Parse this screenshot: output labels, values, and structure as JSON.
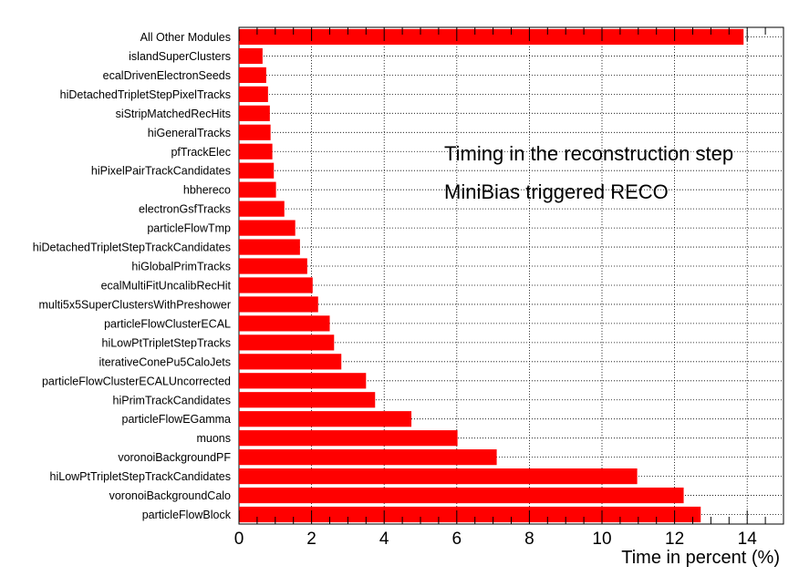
{
  "chart_data": {
    "type": "bar",
    "orientation": "horizontal",
    "categories": [
      "All Other Modules",
      "islandSuperClusters",
      "ecalDrivenElectronSeeds",
      "hiDetachedTripletStepPixelTracks",
      "siStripMatchedRecHits",
      "hiGeneralTracks",
      "pfTrackElec",
      "hiPixelPairTrackCandidates",
      "hbhereco",
      "electronGsfTracks",
      "particleFlowTmp",
      "hiDetachedTripletStepTrackCandidates",
      "hiGlobalPrimTracks",
      "ecalMultiFitUncalibRecHit",
      "multi5x5SuperClustersWithPreshower",
      "particleFlowClusterECAL",
      "hiLowPtTripletStepTracks",
      "iterativeConePu5CaloJets",
      "particleFlowClusterECALUncorrected",
      "hiPrimTrackCandidates",
      "particleFlowEGamma",
      "muons",
      "voronoiBackgroundPF",
      "hiLowPtTripletStepTrackCandidates",
      "voronoiBackgroundCalo",
      "particleFlowBlock"
    ],
    "values": [
      13.9,
      0.65,
      0.75,
      0.8,
      0.85,
      0.87,
      0.92,
      0.96,
      1.02,
      1.25,
      1.55,
      1.68,
      1.88,
      2.03,
      2.18,
      2.5,
      2.62,
      2.82,
      3.5,
      3.75,
      4.75,
      6.02,
      7.1,
      10.97,
      12.25,
      12.72
    ],
    "xlabel": "Time in percent (%)",
    "ylabel": "",
    "xlim": [
      0,
      15
    ],
    "xticks": [
      0,
      2,
      4,
      6,
      8,
      10,
      12,
      14
    ],
    "tick_labels": [
      "0",
      "2",
      "4",
      "6",
      "8",
      "10",
      "12",
      "14"
    ],
    "grid": true,
    "bar_color": "#ff0000",
    "annotations": [
      "Timing in the reconstruction step",
      "MiniBias triggered RECO"
    ]
  }
}
